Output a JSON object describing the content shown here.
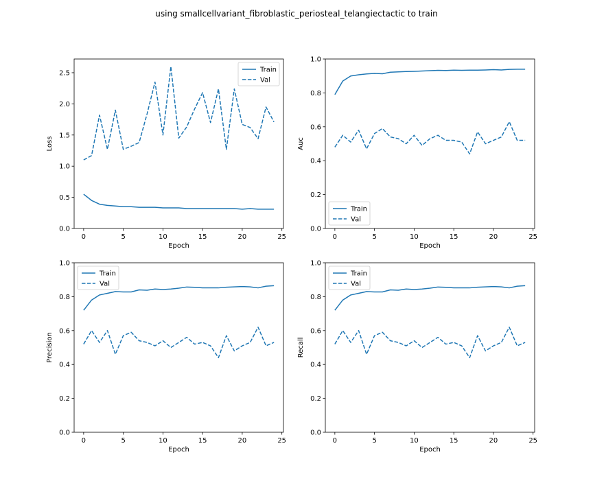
{
  "suptitle": "using smallcellvariant_fibroblastic_periosteal_telangiectactic to train",
  "series_color": "#1f77b4",
  "chart_data": [
    {
      "type": "line",
      "xlabel": "Epoch",
      "ylabel": "Loss",
      "xlim": [
        -1.2,
        25.2
      ],
      "ylim": [
        0,
        2.72
      ],
      "xticks": [
        0,
        5,
        10,
        15,
        20,
        25
      ],
      "yticks": [
        0.0,
        0.5,
        1.0,
        1.5,
        2.0,
        2.5
      ],
      "ytick_labels": [
        "0.0",
        "0.5",
        "1.0",
        "1.5",
        "2.0",
        "2.5"
      ],
      "legend": "upper right",
      "x": [
        0,
        1,
        2,
        3,
        4,
        5,
        6,
        7,
        8,
        9,
        10,
        11,
        12,
        13,
        14,
        15,
        16,
        17,
        18,
        19,
        20,
        21,
        22,
        23,
        24
      ],
      "series": [
        {
          "name": "Train",
          "style": "solid",
          "values": [
            0.55,
            0.45,
            0.39,
            0.37,
            0.36,
            0.35,
            0.35,
            0.34,
            0.34,
            0.34,
            0.33,
            0.33,
            0.33,
            0.32,
            0.32,
            0.32,
            0.32,
            0.32,
            0.32,
            0.32,
            0.31,
            0.32,
            0.31,
            0.31,
            0.31
          ]
        },
        {
          "name": "Val",
          "style": "dashed",
          "values": [
            1.1,
            1.17,
            1.82,
            1.27,
            1.9,
            1.27,
            1.32,
            1.38,
            1.84,
            2.35,
            1.5,
            2.6,
            1.45,
            1.63,
            1.92,
            2.18,
            1.7,
            2.24,
            1.27,
            2.24,
            1.67,
            1.62,
            1.44,
            1.95,
            1.71
          ]
        }
      ]
    },
    {
      "type": "line",
      "xlabel": "Epoch",
      "ylabel": "Auc",
      "xlim": [
        -1.2,
        25.2
      ],
      "ylim": [
        0,
        1
      ],
      "xticks": [
        0,
        5,
        10,
        15,
        20,
        25
      ],
      "yticks": [
        0.0,
        0.2,
        0.4,
        0.6,
        0.8,
        1.0
      ],
      "ytick_labels": [
        "0.0",
        "0.2",
        "0.4",
        "0.6",
        "0.8",
        "1.0"
      ],
      "legend": "lower left",
      "x": [
        0,
        1,
        2,
        3,
        4,
        5,
        6,
        7,
        8,
        9,
        10,
        11,
        12,
        13,
        14,
        15,
        16,
        17,
        18,
        19,
        20,
        21,
        22,
        23,
        24
      ],
      "series": [
        {
          "name": "Train",
          "style": "solid",
          "values": [
            0.79,
            0.87,
            0.9,
            0.907,
            0.912,
            0.915,
            0.913,
            0.922,
            0.924,
            0.926,
            0.927,
            0.929,
            0.931,
            0.933,
            0.932,
            0.934,
            0.933,
            0.934,
            0.934,
            0.935,
            0.937,
            0.935,
            0.939,
            0.94,
            0.94
          ]
        },
        {
          "name": "Val",
          "style": "dashed",
          "values": [
            0.48,
            0.55,
            0.51,
            0.58,
            0.47,
            0.56,
            0.59,
            0.54,
            0.53,
            0.5,
            0.55,
            0.49,
            0.53,
            0.55,
            0.52,
            0.52,
            0.51,
            0.44,
            0.57,
            0.5,
            0.52,
            0.54,
            0.63,
            0.52,
            0.52
          ]
        }
      ]
    },
    {
      "type": "line",
      "xlabel": "Epoch",
      "ylabel": "Precision",
      "xlim": [
        -1.2,
        25.2
      ],
      "ylim": [
        0,
        1
      ],
      "xticks": [
        0,
        5,
        10,
        15,
        20,
        25
      ],
      "yticks": [
        0.0,
        0.2,
        0.4,
        0.6,
        0.8,
        1.0
      ],
      "ytick_labels": [
        "0.0",
        "0.2",
        "0.4",
        "0.6",
        "0.8",
        "1.0"
      ],
      "legend": "upper left",
      "x": [
        0,
        1,
        2,
        3,
        4,
        5,
        6,
        7,
        8,
        9,
        10,
        11,
        12,
        13,
        14,
        15,
        16,
        17,
        18,
        19,
        20,
        21,
        22,
        23,
        24
      ],
      "series": [
        {
          "name": "Train",
          "style": "solid",
          "values": [
            0.72,
            0.78,
            0.81,
            0.82,
            0.83,
            0.828,
            0.828,
            0.84,
            0.838,
            0.845,
            0.842,
            0.845,
            0.85,
            0.857,
            0.855,
            0.852,
            0.852,
            0.852,
            0.856,
            0.858,
            0.86,
            0.858,
            0.852,
            0.862,
            0.865
          ]
        },
        {
          "name": "Val",
          "style": "dashed",
          "values": [
            0.52,
            0.6,
            0.53,
            0.6,
            0.46,
            0.57,
            0.59,
            0.54,
            0.53,
            0.51,
            0.54,
            0.5,
            0.53,
            0.56,
            0.52,
            0.53,
            0.51,
            0.44,
            0.57,
            0.48,
            0.51,
            0.53,
            0.62,
            0.51,
            0.53
          ]
        }
      ]
    },
    {
      "type": "line",
      "xlabel": "Epoch",
      "ylabel": "Recall",
      "xlim": [
        -1.2,
        25.2
      ],
      "ylim": [
        0,
        1
      ],
      "xticks": [
        0,
        5,
        10,
        15,
        20,
        25
      ],
      "yticks": [
        0.0,
        0.2,
        0.4,
        0.6,
        0.8,
        1.0
      ],
      "ytick_labels": [
        "0.0",
        "0.2",
        "0.4",
        "0.6",
        "0.8",
        "1.0"
      ],
      "legend": "upper left",
      "x": [
        0,
        1,
        2,
        3,
        4,
        5,
        6,
        7,
        8,
        9,
        10,
        11,
        12,
        13,
        14,
        15,
        16,
        17,
        18,
        19,
        20,
        21,
        22,
        23,
        24
      ],
      "series": [
        {
          "name": "Train",
          "style": "solid",
          "values": [
            0.72,
            0.78,
            0.81,
            0.82,
            0.83,
            0.828,
            0.828,
            0.84,
            0.838,
            0.845,
            0.842,
            0.845,
            0.85,
            0.857,
            0.855,
            0.852,
            0.852,
            0.852,
            0.856,
            0.858,
            0.86,
            0.858,
            0.852,
            0.862,
            0.865
          ]
        },
        {
          "name": "Val",
          "style": "dashed",
          "values": [
            0.52,
            0.6,
            0.53,
            0.6,
            0.46,
            0.57,
            0.59,
            0.54,
            0.53,
            0.51,
            0.54,
            0.5,
            0.53,
            0.56,
            0.52,
            0.53,
            0.51,
            0.44,
            0.57,
            0.48,
            0.51,
            0.53,
            0.62,
            0.51,
            0.53
          ]
        }
      ]
    }
  ]
}
